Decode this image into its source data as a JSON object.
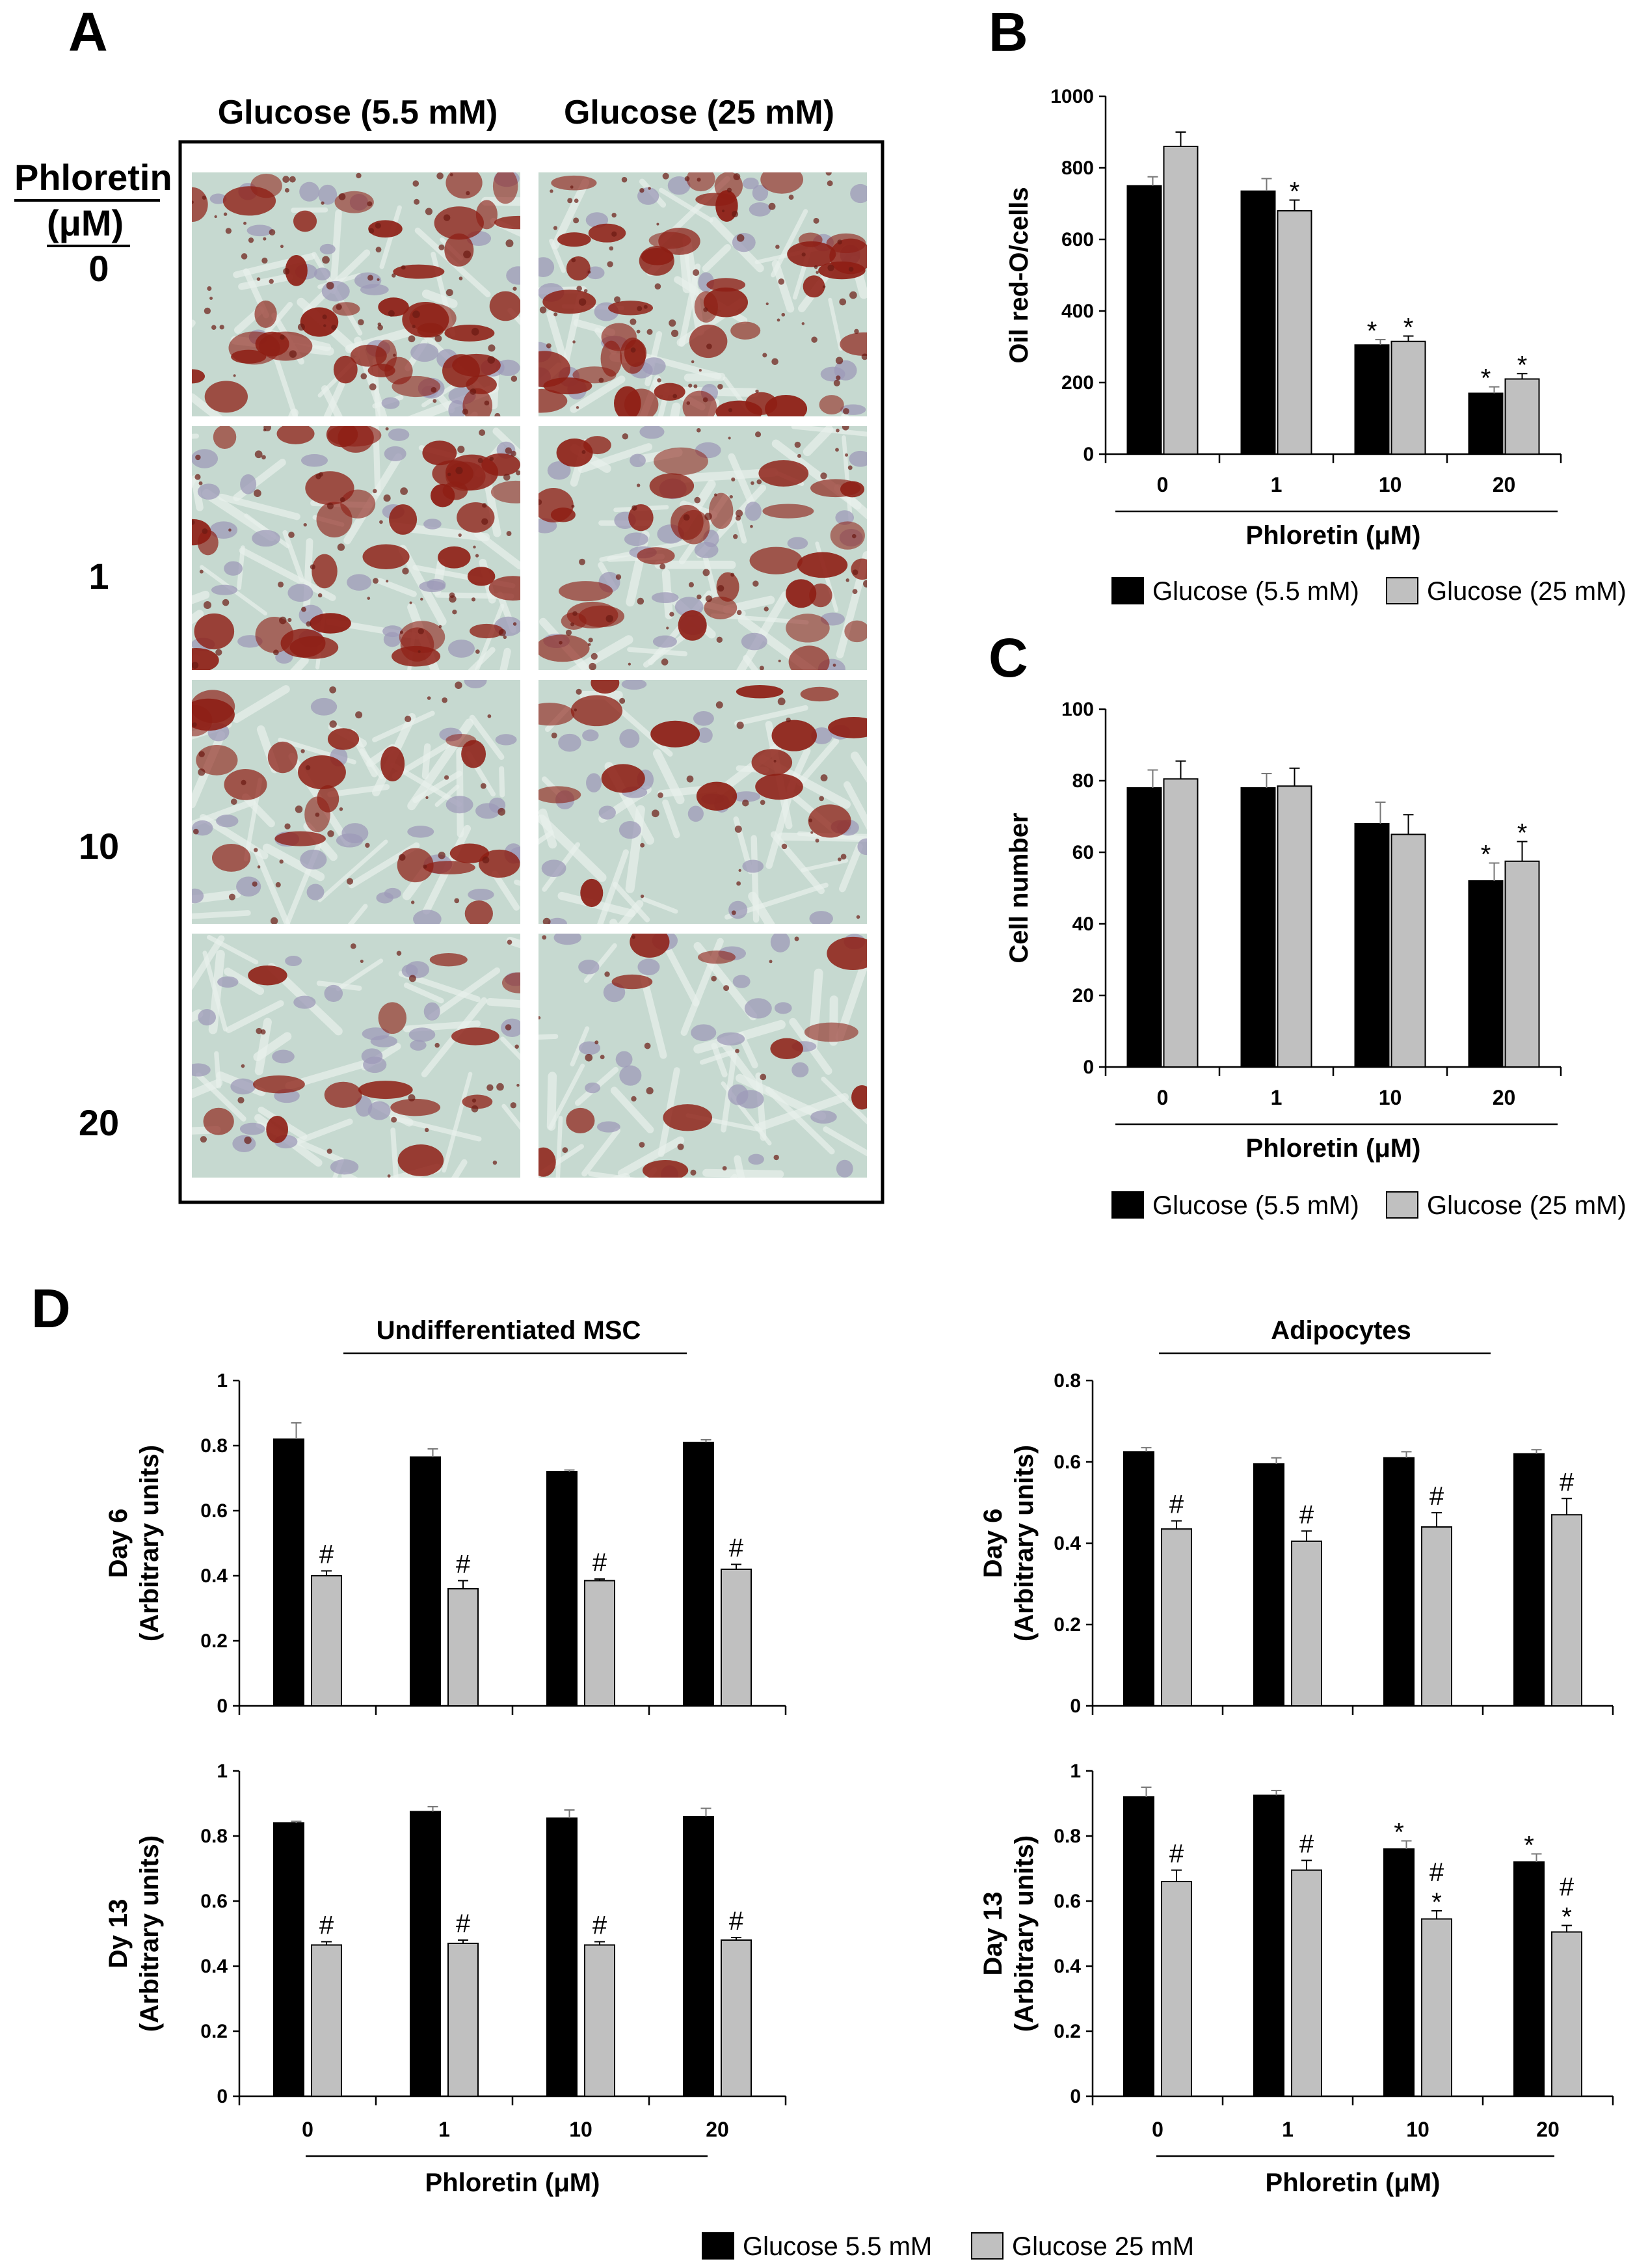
{
  "panel_a": {
    "letter": "A",
    "col_headers": [
      "Glucose (5.5 mM)",
      "Glucose (25 mM)"
    ],
    "row_header_line1": "Phloretin",
    "row_header_line2": "(μM)",
    "row_labels": [
      "0",
      "1",
      "10",
      "20"
    ],
    "stain_color": "#8e1e14",
    "background_color": "#c6d9d0",
    "nucleus_color": "#9e9ab8",
    "stain_levels": [
      [
        0.55,
        0.62
      ],
      [
        0.5,
        0.45
      ],
      [
        0.28,
        0.22
      ],
      [
        0.18,
        0.16
      ]
    ]
  },
  "legends": {
    "bc": [
      "Glucose (5.5 mM)",
      "Glucose (25 mM)"
    ],
    "d": [
      "Glucose 5.5 mM",
      "Glucose 25 mM"
    ]
  },
  "colors": {
    "series1": "#000000",
    "series2": "#c0c0c0"
  },
  "chart_data": [
    {
      "id": "B",
      "letter": "B",
      "type": "bar",
      "categories": [
        "0",
        "1",
        "10",
        "20"
      ],
      "xlabel": "Phloretin (μM)",
      "ylabel": "Oil red-O/cells",
      "ylim": [
        0,
        1000
      ],
      "yticks": [
        "0",
        "200",
        "400",
        "600",
        "800",
        "1000"
      ],
      "series": [
        {
          "values": [
            750,
            735,
            305,
            170
          ],
          "errors": [
            25,
            35,
            15,
            18
          ],
          "marks": [
            "",
            "",
            "*",
            "*"
          ]
        },
        {
          "values": [
            860,
            680,
            315,
            210
          ],
          "errors": [
            40,
            30,
            15,
            15
          ],
          "marks": [
            "",
            "*",
            "*",
            "*"
          ]
        }
      ]
    },
    {
      "id": "C",
      "letter": "C",
      "type": "bar",
      "categories": [
        "0",
        "1",
        "10",
        "20"
      ],
      "xlabel": "Phloretin (μM)",
      "ylabel": "Cell number",
      "ylim": [
        0,
        100
      ],
      "yticks": [
        "0",
        "20",
        "40",
        "60",
        "80",
        "100"
      ],
      "series": [
        {
          "values": [
            78,
            78,
            68,
            52
          ],
          "errors": [
            5,
            4,
            6,
            5
          ],
          "marks": [
            "",
            "",
            "",
            "*"
          ]
        },
        {
          "values": [
            80.5,
            78.5,
            65,
            57.5
          ],
          "errors": [
            5,
            5,
            5.5,
            5.5
          ],
          "marks": [
            "",
            "",
            "",
            "*"
          ]
        }
      ]
    },
    {
      "id": "D1",
      "letter": "D",
      "type": "bar",
      "title": "Undifferentiated MSC",
      "categories": [
        "0",
        "1",
        "10",
        "20"
      ],
      "xlabel": "",
      "ylabel_line1": "Day 6",
      "ylabel_line2": "(Arbitrary units)",
      "ylim": [
        0,
        1
      ],
      "yticks": [
        "0",
        "0.2",
        "0.4",
        "0.6",
        "0.8",
        "1"
      ],
      "series": [
        {
          "values": [
            0.82,
            0.765,
            0.72,
            0.81
          ],
          "errors": [
            0.05,
            0.025,
            0.005,
            0.008
          ],
          "marks": [
            "",
            "",
            "",
            ""
          ]
        },
        {
          "values": [
            0.4,
            0.36,
            0.385,
            0.42
          ],
          "errors": [
            0.015,
            0.025,
            0.005,
            0.015
          ],
          "marks": [
            "#",
            "#",
            "#",
            "#"
          ]
        }
      ]
    },
    {
      "id": "D2",
      "type": "bar",
      "title": "Adipocytes",
      "categories": [
        "0",
        "1",
        "10",
        "20"
      ],
      "xlabel": "",
      "ylabel_line1": "Day 6",
      "ylabel_line2": "(Arbitrary units)",
      "ylim": [
        0,
        0.8
      ],
      "yticks": [
        "0",
        "0.2",
        "0.4",
        "0.6",
        "0.8"
      ],
      "series": [
        {
          "values": [
            0.625,
            0.595,
            0.61,
            0.62
          ],
          "errors": [
            0.01,
            0.015,
            0.015,
            0.01
          ],
          "marks": [
            "",
            "",
            "",
            ""
          ]
        },
        {
          "values": [
            0.435,
            0.405,
            0.44,
            0.47
          ],
          "errors": [
            0.02,
            0.025,
            0.035,
            0.04
          ],
          "marks": [
            "#",
            "#",
            "#",
            "#"
          ]
        }
      ]
    },
    {
      "id": "D3",
      "type": "bar",
      "categories": [
        "0",
        "1",
        "10",
        "20"
      ],
      "xlabel": "Phloretin (μM)",
      "ylabel_line1": "Dy 13",
      "ylabel_line2": "(Arbitrary units)",
      "ylim": [
        0,
        1
      ],
      "yticks": [
        "0",
        "0.2",
        "0.4",
        "0.6",
        "0.8",
        "1"
      ],
      "series": [
        {
          "values": [
            0.84,
            0.875,
            0.855,
            0.86
          ],
          "errors": [
            0.005,
            0.015,
            0.025,
            0.025
          ],
          "marks": [
            "",
            "",
            "",
            ""
          ]
        },
        {
          "values": [
            0.465,
            0.47,
            0.465,
            0.48
          ],
          "errors": [
            0.01,
            0.01,
            0.01,
            0.008
          ],
          "marks": [
            "#",
            "#",
            "#",
            "#"
          ]
        }
      ]
    },
    {
      "id": "D4",
      "type": "bar",
      "categories": [
        "0",
        "1",
        "10",
        "20"
      ],
      "xlabel": "Phloretin (μM)",
      "ylabel_line1": "Day 13",
      "ylabel_line2": "(Arbitrary units)",
      "ylim": [
        0,
        1
      ],
      "yticks": [
        "0",
        "0.2",
        "0.4",
        "0.6",
        "0.8",
        "1"
      ],
      "series": [
        {
          "values": [
            0.92,
            0.925,
            0.76,
            0.72
          ],
          "errors": [
            0.03,
            0.015,
            0.025,
            0.025
          ],
          "marks": [
            "",
            "",
            "*",
            "*"
          ]
        },
        {
          "values": [
            0.66,
            0.695,
            0.545,
            0.505
          ],
          "errors": [
            0.035,
            0.03,
            0.025,
            0.02
          ],
          "marks": [
            "#",
            "#",
            "#\n*",
            "#\n*"
          ]
        }
      ]
    }
  ]
}
